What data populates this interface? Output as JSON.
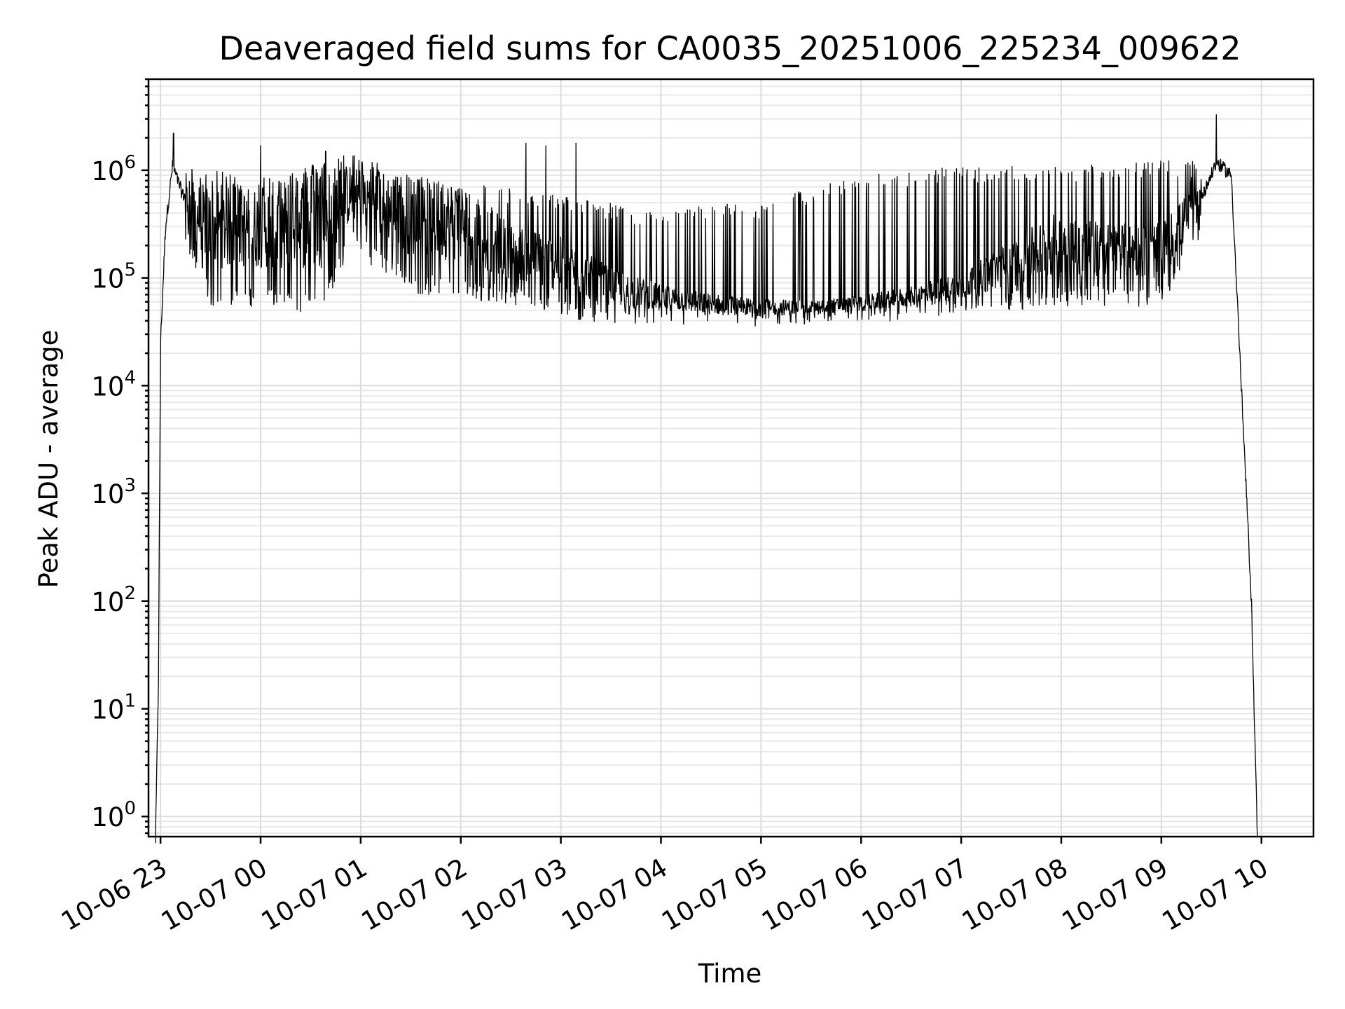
{
  "chart_data": {
    "type": "line",
    "title": "Deaveraged field sums for CA0035_20251006_225234_009622",
    "xlabel": "Time",
    "ylabel": "Peak ADU - average",
    "yscale": "log",
    "ylim": [
      0.65,
      7000000
    ],
    "xlim_hours_after_2025-10-06T23:00": [
      -0.12,
      11.52
    ],
    "grid": true,
    "x_ticks": [
      {
        "hour": 0,
        "label": "10-06 23"
      },
      {
        "hour": 1,
        "label": "10-07 00"
      },
      {
        "hour": 2,
        "label": "10-07 01"
      },
      {
        "hour": 3,
        "label": "10-07 02"
      },
      {
        "hour": 4,
        "label": "10-07 03"
      },
      {
        "hour": 5,
        "label": "10-07 04"
      },
      {
        "hour": 6,
        "label": "10-07 05"
      },
      {
        "hour": 7,
        "label": "10-07 06"
      },
      {
        "hour": 8,
        "label": "10-07 07"
      },
      {
        "hour": 9,
        "label": "10-07 08"
      },
      {
        "hour": 10,
        "label": "10-07 09"
      },
      {
        "hour": 11,
        "label": "10-07 10"
      }
    ],
    "y_ticks": [
      {
        "value": 1,
        "base": "10",
        "exp": "0"
      },
      {
        "value": 10,
        "base": "10",
        "exp": "1"
      },
      {
        "value": 100,
        "base": "10",
        "exp": "2"
      },
      {
        "value": 1000,
        "base": "10",
        "exp": "3"
      },
      {
        "value": 10000,
        "base": "10",
        "exp": "4"
      },
      {
        "value": 100000,
        "base": "10",
        "exp": "5"
      },
      {
        "value": 1000000,
        "base": "10",
        "exp": "6"
      }
    ],
    "series": [
      {
        "name": "field sum",
        "color": "#000000",
        "note": "dense noisy trace; envelope per time segment (hours after 10-06 23:00)",
        "envelope": [
          {
            "t": -0.05,
            "low": 0.6,
            "mid": 0.6,
            "high": 0.6
          },
          {
            "t": -0.02,
            "low": 20,
            "mid": 20,
            "high": 20
          },
          {
            "t": 0.0,
            "low": 20000,
            "mid": 25000,
            "high": 30000
          },
          {
            "t": 0.05,
            "low": 200000,
            "mid": 300000,
            "high": 400000
          },
          {
            "t": 0.12,
            "low": 900000,
            "mid": 1100000,
            "high": 2200000
          },
          {
            "t": 0.22,
            "low": 250000,
            "mid": 600000,
            "high": 1100000
          },
          {
            "t": 0.5,
            "low": 60000,
            "mid": 350000,
            "high": 1000000
          },
          {
            "t": 1.0,
            "low": 60000,
            "mid": 350000,
            "high": 900000
          },
          {
            "t": 1.6,
            "low": 50000,
            "mid": 450000,
            "high": 1200000
          },
          {
            "t": 1.9,
            "low": 200000,
            "mid": 700000,
            "high": 1500000
          },
          {
            "t": 2.5,
            "low": 80000,
            "mid": 450000,
            "high": 900000
          },
          {
            "t": 3.0,
            "low": 70000,
            "mid": 400000,
            "high": 800000
          },
          {
            "t": 3.5,
            "low": 60000,
            "mid": 200000,
            "high": 700000
          },
          {
            "t": 4.0,
            "low": 45000,
            "mid": 150000,
            "high": 600000
          },
          {
            "t": 4.5,
            "low": 40000,
            "mid": 90000,
            "high": 500000
          },
          {
            "t": 5.0,
            "low": 40000,
            "mid": 70000,
            "high": 400000
          },
          {
            "t": 5.5,
            "low": 38000,
            "mid": 60000,
            "high": 500000
          },
          {
            "t": 6.0,
            "low": 38000,
            "mid": 55000,
            "high": 500000
          },
          {
            "t": 6.5,
            "low": 40000,
            "mid": 55000,
            "high": 700000
          },
          {
            "t": 7.0,
            "low": 42000,
            "mid": 60000,
            "high": 900000
          },
          {
            "t": 7.5,
            "low": 45000,
            "mid": 70000,
            "high": 1000000
          },
          {
            "t": 8.0,
            "low": 50000,
            "mid": 90000,
            "high": 1100000
          },
          {
            "t": 8.5,
            "low": 55000,
            "mid": 150000,
            "high": 1100000
          },
          {
            "t": 9.0,
            "low": 60000,
            "mid": 250000,
            "high": 1100000
          },
          {
            "t": 9.5,
            "low": 60000,
            "mid": 200000,
            "high": 1200000
          },
          {
            "t": 10.0,
            "low": 60000,
            "mid": 200000,
            "high": 1250000
          },
          {
            "t": 10.45,
            "low": 300000,
            "mid": 700000,
            "high": 1200000
          },
          {
            "t": 10.55,
            "low": 900000,
            "mid": 1200000,
            "high": 3300000
          },
          {
            "t": 10.7,
            "low": 700000,
            "mid": 900000,
            "high": 1000000
          },
          {
            "t": 10.9,
            "low": 100,
            "mid": 100,
            "high": 100
          },
          {
            "t": 10.96,
            "low": 0.6,
            "mid": 0.6,
            "high": 0.6
          }
        ],
        "spikes": [
          {
            "t": 0.13,
            "value": 2200000
          },
          {
            "t": 1.0,
            "value": 1700000
          },
          {
            "t": 1.65,
            "value": 1500000
          },
          {
            "t": 3.65,
            "value": 1800000
          },
          {
            "t": 3.85,
            "value": 1700000
          },
          {
            "t": 4.15,
            "value": 1800000
          },
          {
            "t": 10.55,
            "value": 3300000
          }
        ]
      }
    ]
  }
}
